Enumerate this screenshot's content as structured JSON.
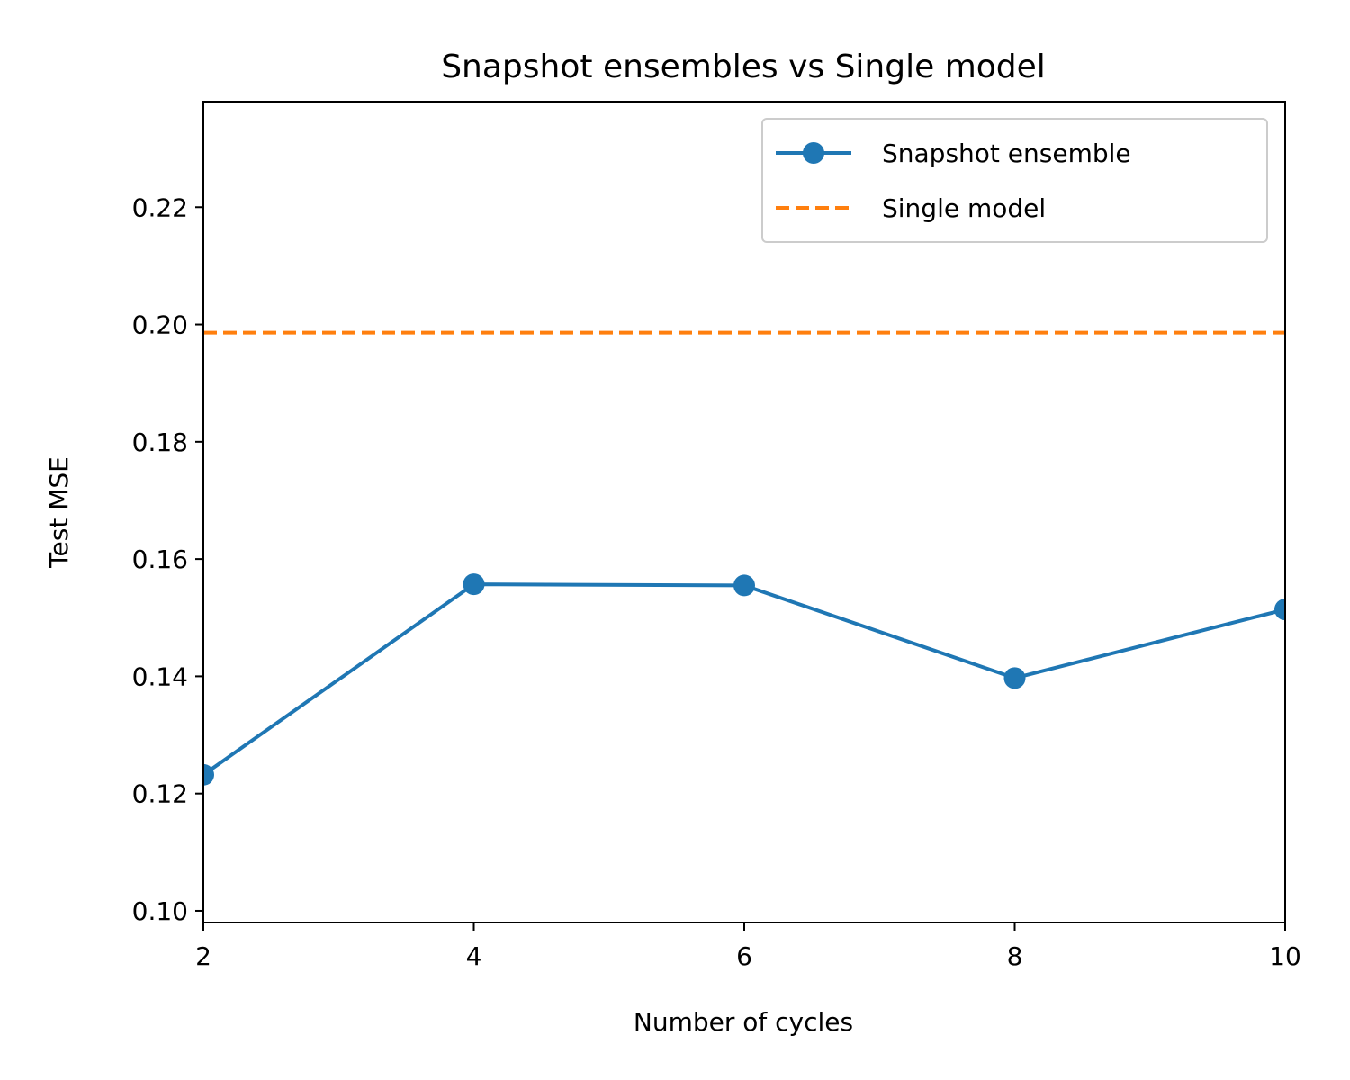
{
  "chart_data": {
    "type": "line",
    "title": "Snapshot ensembles vs Single model",
    "xlabel": "Number of cycles",
    "ylabel": "Test MSE",
    "xlim": [
      2,
      10
    ],
    "ylim": [
      0.098,
      0.238
    ],
    "xticks": [
      2,
      4,
      6,
      8,
      10
    ],
    "xtick_labels": [
      "2",
      "4",
      "6",
      "8",
      "10"
    ],
    "yticks": [
      0.1,
      0.12,
      0.14,
      0.16,
      0.18,
      0.2,
      0.22
    ],
    "ytick_labels": [
      "0.10",
      "0.12",
      "0.14",
      "0.16",
      "0.18",
      "0.20",
      "0.22"
    ],
    "grid": false,
    "legend_position": "top-right",
    "series": [
      {
        "name": "Snapshot ensemble",
        "style": "line-with-markers",
        "color": "#1f77b4",
        "x": [
          2,
          4,
          6,
          8,
          10
        ],
        "y": [
          0.1232,
          0.1557,
          0.1555,
          0.1397,
          0.1514
        ]
      },
      {
        "name": "Single model",
        "style": "dashed-horizontal",
        "color": "#ff7f0e",
        "y": 0.1986
      }
    ]
  }
}
